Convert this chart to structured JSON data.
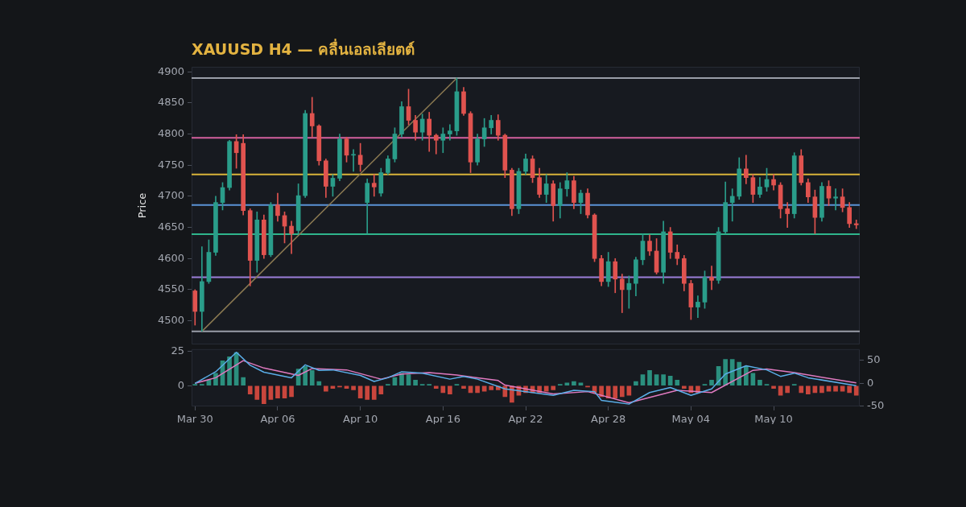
{
  "chart_data": [
    {
      "type": "candlestick",
      "title": "XAUUSD H4 — คลื่นเอลเลียตต์",
      "ylabel": "Price",
      "tick_labels": "y",
      "marker": "none",
      "categories": [
        null,
        null,
        null,
        null,
        null,
        null,
        null,
        null,
        null,
        null,
        null,
        null,
        null,
        null,
        null,
        null,
        null,
        null,
        null,
        null,
        null,
        null,
        null,
        null,
        null,
        null,
        null,
        null,
        null,
        null,
        null,
        null,
        null,
        null,
        null,
        null,
        null,
        null,
        null,
        null,
        null,
        null,
        null,
        null,
        null,
        null,
        null,
        null,
        null,
        null,
        null,
        null,
        null,
        null,
        null,
        null,
        null,
        null,
        null,
        null,
        null,
        null,
        null,
        null,
        null,
        null,
        null,
        null,
        null,
        null,
        null,
        null,
        null,
        null,
        null,
        null,
        null,
        null,
        null,
        null,
        null,
        null,
        null,
        null,
        null,
        null,
        null,
        null,
        null,
        null,
        null,
        null,
        null,
        null,
        null,
        null,
        null
      ],
      "ohlc": [
        [
          4548,
          4550,
          4493,
          4515
        ],
        [
          4515,
          4619,
          4483,
          4563
        ],
        [
          4563,
          4630,
          4560,
          4610
        ],
        [
          4610,
          4700,
          4605,
          4690
        ],
        [
          4690,
          4722,
          4678,
          4714
        ],
        [
          4714,
          4790,
          4710,
          4788
        ],
        [
          4788,
          4799,
          4745,
          4770
        ],
        [
          4785,
          4799,
          4670,
          4677
        ],
        [
          4677,
          4680,
          4556,
          4597
        ],
        [
          4597,
          4675,
          4578,
          4662
        ],
        [
          4662,
          4670,
          4600,
          4606
        ],
        [
          4606,
          4690,
          4603,
          4686
        ],
        [
          4686,
          4705,
          4660,
          4669
        ],
        [
          4669,
          4675,
          4625,
          4652
        ],
        [
          4652,
          4660,
          4608,
          4640
        ],
        [
          4645,
          4720,
          4640,
          4701
        ],
        [
          4701,
          4838,
          4698,
          4833
        ],
        [
          4833,
          4859,
          4795,
          4813
        ],
        [
          4813,
          4815,
          4750,
          4757
        ],
        [
          4757,
          4760,
          4698,
          4716
        ],
        [
          4716,
          4735,
          4700,
          4729
        ],
        [
          4729,
          4800,
          4725,
          4792
        ],
        [
          4792,
          4795,
          4755,
          4766
        ],
        [
          4766,
          4775,
          4740,
          4766
        ],
        [
          4766,
          4785,
          4740,
          4751
        ],
        [
          4690,
          4728,
          4640,
          4721
        ],
        [
          4721,
          4735,
          4700,
          4715
        ],
        [
          4705,
          4745,
          4700,
          4738
        ],
        [
          4738,
          4765,
          4735,
          4760
        ],
        [
          4760,
          4810,
          4755,
          4800
        ],
        [
          4800,
          4852,
          4795,
          4844
        ],
        [
          4844,
          4872,
          4815,
          4822
        ],
        [
          4822,
          4830,
          4790,
          4803
        ],
        [
          4803,
          4832,
          4790,
          4824
        ],
        [
          4824,
          4835,
          4772,
          4798
        ],
        [
          4798,
          4800,
          4768,
          4790
        ],
        [
          4790,
          4810,
          4770,
          4800
        ],
        [
          4800,
          4815,
          4790,
          4805
        ],
        [
          4805,
          4890,
          4798,
          4868
        ],
        [
          4868,
          4875,
          4830,
          4833
        ],
        [
          4833,
          4836,
          4738,
          4755
        ],
        [
          4755,
          4800,
          4750,
          4792
        ],
        [
          4792,
          4825,
          4780,
          4810
        ],
        [
          4810,
          4830,
          4800,
          4822
        ],
        [
          4822,
          4831,
          4790,
          4798
        ],
        [
          4798,
          4800,
          4730,
          4742
        ],
        [
          4742,
          4745,
          4669,
          4680
        ],
        [
          4680,
          4745,
          4672,
          4740
        ],
        [
          4740,
          4768,
          4735,
          4760
        ],
        [
          4760,
          4765,
          4722,
          4730
        ],
        [
          4730,
          4745,
          4698,
          4703
        ],
        [
          4703,
          4735,
          4690,
          4720
        ],
        [
          4720,
          4725,
          4660,
          4685
        ],
        [
          4685,
          4722,
          4665,
          4712
        ],
        [
          4712,
          4738,
          4700,
          4725
        ],
        [
          4725,
          4732,
          4680,
          4690
        ],
        [
          4690,
          4710,
          4672,
          4705
        ],
        [
          4705,
          4712,
          4665,
          4670
        ],
        [
          4670,
          4672,
          4595,
          4600
        ],
        [
          4600,
          4605,
          4556,
          4563
        ],
        [
          4563,
          4610,
          4555,
          4595
        ],
        [
          4595,
          4600,
          4545,
          4567
        ],
        [
          4567,
          4575,
          4513,
          4550
        ],
        [
          4550,
          4572,
          4520,
          4560
        ],
        [
          4560,
          4602,
          4540,
          4598
        ],
        [
          4598,
          4640,
          4590,
          4628
        ],
        [
          4628,
          4638,
          4605,
          4612
        ],
        [
          4612,
          4632,
          4575,
          4578
        ],
        [
          4578,
          4660,
          4560,
          4643
        ],
        [
          4643,
          4650,
          4600,
          4610
        ],
        [
          4610,
          4622,
          4590,
          4600
        ],
        [
          4600,
          4605,
          4548,
          4560
        ],
        [
          4560,
          4565,
          4502,
          4522
        ],
        [
          4522,
          4540,
          4505,
          4530
        ],
        [
          4530,
          4580,
          4520,
          4570
        ],
        [
          4570,
          4588,
          4550,
          4565
        ],
        [
          4565,
          4650,
          4560,
          4643
        ],
        [
          4643,
          4723,
          4640,
          4690
        ],
        [
          4690,
          4712,
          4660,
          4700
        ],
        [
          4700,
          4762,
          4695,
          4744
        ],
        [
          4744,
          4766,
          4720,
          4730
        ],
        [
          4730,
          4735,
          4690,
          4703
        ],
        [
          4703,
          4730,
          4698,
          4715
        ],
        [
          4715,
          4745,
          4708,
          4727
        ],
        [
          4727,
          4735,
          4710,
          4718
        ],
        [
          4718,
          4722,
          4665,
          4680
        ],
        [
          4680,
          4690,
          4650,
          4672
        ],
        [
          4672,
          4770,
          4665,
          4765
        ],
        [
          4765,
          4775,
          4718,
          4722
        ],
        [
          4722,
          4728,
          4690,
          4699
        ],
        [
          4699,
          4710,
          4640,
          4666
        ],
        [
          4666,
          4722,
          4660,
          4716
        ],
        [
          4716,
          4725,
          4685,
          4697
        ],
        [
          4697,
          4712,
          4678,
          4699
        ],
        [
          4699,
          4712,
          4675,
          4682
        ],
        [
          4682,
          4690,
          4650,
          4656
        ],
        [
          4656,
          4662,
          4648,
          4654
        ]
      ],
      "series": [
        {
          "type": "line",
          "color": "#8c7a52",
          "values": [
            null,
            4483,
            null,
            null,
            null,
            null,
            null,
            null,
            null,
            null,
            null,
            null,
            null,
            null,
            null,
            null,
            null,
            null,
            null,
            null,
            null,
            null,
            null,
            null,
            null,
            null,
            null,
            null,
            null,
            null,
            null,
            null,
            null,
            null,
            null,
            null,
            null,
            null,
            4890,
            null,
            null,
            null,
            null,
            null,
            null,
            null,
            null,
            null,
            null,
            null,
            null,
            null,
            null,
            null,
            null,
            null,
            null,
            null,
            null,
            null,
            null,
            null,
            null,
            null,
            null,
            null,
            null,
            null,
            null,
            null,
            null,
            null,
            null,
            null,
            null,
            null,
            null,
            null,
            null,
            null,
            null,
            null,
            null,
            null,
            null,
            null,
            null,
            null,
            null,
            null,
            null,
            null,
            null,
            null,
            null,
            null,
            null
          ]
        }
      ],
      "ylim": [
        4462,
        4908
      ],
      "yticks": [
        4500,
        4550,
        4600,
        4650,
        4700,
        4750,
        4800,
        4850,
        4900
      ],
      "ref_lines": [
        {
          "axis": "y",
          "value": 4890,
          "color": "#9a9ea8"
        },
        {
          "axis": "y",
          "value": 4794,
          "color": "#d4609e"
        },
        {
          "axis": "y",
          "value": 4735,
          "color": "#d9b43a"
        },
        {
          "axis": "y",
          "value": 4686,
          "color": "#5b93d6"
        },
        {
          "axis": "y",
          "value": 4639,
          "color": "#2fb58c"
        },
        {
          "axis": "y",
          "value": 4570,
          "color": "#9b7fd9"
        },
        {
          "axis": "y",
          "value": 4483,
          "color": "#9a9ea8"
        }
      ]
    },
    {
      "type": "bar",
      "marker": "none",
      "categories": [
        "Mar 30",
        null,
        null,
        null,
        null,
        null,
        null,
        null,
        null,
        null,
        null,
        null,
        "Apr 06",
        null,
        null,
        null,
        null,
        null,
        null,
        null,
        null,
        null,
        null,
        null,
        "Apr 10",
        null,
        null,
        null,
        null,
        null,
        null,
        null,
        null,
        null,
        null,
        null,
        "Apr 16",
        null,
        null,
        null,
        null,
        null,
        null,
        null,
        null,
        null,
        null,
        null,
        "Apr 22",
        null,
        null,
        null,
        null,
        null,
        null,
        null,
        null,
        null,
        null,
        null,
        "Apr 28",
        null,
        null,
        null,
        null,
        null,
        null,
        null,
        null,
        null,
        null,
        null,
        "May 04",
        null,
        null,
        null,
        null,
        null,
        null,
        null,
        null,
        null,
        null,
        null,
        "May 10",
        null,
        null,
        null,
        null,
        null,
        null,
        null,
        null,
        null,
        null,
        null,
        null
      ],
      "series": [
        {
          "type": "bar",
          "values": [
            1,
            1,
            4,
            9,
            18,
            21,
            24,
            6,
            -6,
            -10,
            -13,
            -10,
            -9,
            -9,
            -8,
            12,
            14,
            11,
            3,
            -4,
            -2,
            -1,
            -2,
            -3,
            -9,
            -10,
            -10,
            -6,
            1,
            6,
            9,
            8,
            4,
            1,
            1,
            -2,
            -5,
            -6,
            1,
            -2,
            -5,
            -5,
            -4,
            -3,
            -3,
            -8,
            -12,
            -7,
            -5,
            -5,
            -5,
            -4,
            -3,
            1,
            2,
            3,
            2,
            -1,
            -5,
            -8,
            -9,
            -9,
            -8,
            -7,
            3,
            8,
            11,
            8,
            8,
            7,
            4,
            -2,
            -5,
            -5,
            1,
            4,
            14,
            19,
            19,
            17,
            14,
            9,
            4,
            1,
            -2,
            -7,
            -5,
            1,
            -5,
            -6,
            -5,
            -5,
            -4,
            -4,
            -4,
            -5,
            -7
          ],
          "colors": [
            "#2b8f7e",
            "#2b8f7e",
            "#2b8f7e",
            "#2b8f7e",
            "#2b8f7e",
            "#2b8f7e",
            "#2b8f7e",
            "#2b8f7e",
            "#c9463d",
            "#c9463d",
            "#c9463d",
            "#c9463d",
            "#c9463d",
            "#c9463d",
            "#c9463d",
            "#2b8f7e",
            "#2b8f7e",
            "#2b8f7e",
            "#2b8f7e",
            "#c9463d",
            "#c9463d",
            "#c9463d",
            "#c9463d",
            "#c9463d",
            "#c9463d",
            "#c9463d",
            "#c9463d",
            "#c9463d",
            "#2b8f7e",
            "#2b8f7e",
            "#2b8f7e",
            "#2b8f7e",
            "#2b8f7e",
            "#2b8f7e",
            "#2b8f7e",
            "#c9463d",
            "#c9463d",
            "#c9463d",
            "#2b8f7e",
            "#c9463d",
            "#c9463d",
            "#c9463d",
            "#c9463d",
            "#c9463d",
            "#c9463d",
            "#c9463d",
            "#c9463d",
            "#c9463d",
            "#c9463d",
            "#c9463d",
            "#c9463d",
            "#c9463d",
            "#c9463d",
            "#2b8f7e",
            "#2b8f7e",
            "#2b8f7e",
            "#2b8f7e",
            "#c9463d",
            "#c9463d",
            "#c9463d",
            "#c9463d",
            "#c9463d",
            "#c9463d",
            "#c9463d",
            "#2b8f7e",
            "#2b8f7e",
            "#2b8f7e",
            "#2b8f7e",
            "#2b8f7e",
            "#2b8f7e",
            "#2b8f7e",
            "#c9463d",
            "#c9463d",
            "#c9463d",
            "#2b8f7e",
            "#2b8f7e",
            "#2b8f7e",
            "#2b8f7e",
            "#2b8f7e",
            "#2b8f7e",
            "#2b8f7e",
            "#2b8f7e",
            "#2b8f7e",
            "#2b8f7e",
            "#c9463d",
            "#c9463d",
            "#c9463d",
            "#2b8f7e",
            "#c9463d",
            "#c9463d",
            "#c9463d",
            "#c9463d",
            "#c9463d",
            "#c9463d",
            "#c9463d",
            "#c9463d",
            "#c9463d"
          ]
        },
        {
          "type": "line",
          "axis": "y2",
          "color": "#5aaee8",
          "values": [
            0,
            null,
            null,
            25,
            null,
            null,
            67,
            null,
            39,
            null,
            24,
            null,
            null,
            null,
            12,
            null,
            40,
            null,
            28,
            null,
            29,
            null,
            null,
            null,
            17,
            null,
            4,
            null,
            12,
            null,
            25,
            null,
            null,
            22,
            null,
            null,
            null,
            9,
            null,
            15,
            null,
            9,
            null,
            null,
            null,
            -12,
            null,
            null,
            null,
            null,
            null,
            null,
            -26,
            null,
            null,
            -15,
            null,
            null,
            -18,
            -37,
            null,
            null,
            null,
            -45,
            null,
            null,
            -20,
            null,
            null,
            -9,
            null,
            null,
            -26,
            null,
            null,
            -12,
            null,
            20,
            null,
            null,
            38,
            null,
            null,
            29,
            null,
            15,
            null,
            22,
            null,
            12,
            null,
            null,
            null,
            null,
            null,
            null,
            -5
          ]
        },
        {
          "type": "line",
          "axis": "y2",
          "color": "#e07ac0",
          "values": [
            0,
            null,
            null,
            12,
            null,
            null,
            null,
            49,
            null,
            null,
            33,
            null,
            null,
            null,
            null,
            17,
            null,
            32,
            null,
            null,
            null,
            null,
            29,
            null,
            null,
            null,
            null,
            9,
            null,
            null,
            20,
            null,
            null,
            null,
            23,
            null,
            null,
            null,
            18,
            null,
            null,
            12,
            null,
            null,
            6,
            -4,
            null,
            null,
            null,
            null,
            null,
            null,
            -23,
            null,
            null,
            null,
            null,
            -18,
            null,
            null,
            null,
            null,
            null,
            -42,
            null,
            null,
            null,
            null,
            null,
            null,
            -15,
            null,
            null,
            null,
            null,
            -20,
            null,
            null,
            null,
            null,
            null,
            28,
            null,
            31,
            null,
            null,
            null,
            23,
            null,
            null,
            null,
            null,
            null,
            null,
            null,
            null,
            1
          ]
        }
      ],
      "ylim": [
        -15,
        26.5
      ],
      "yticks": [
        0,
        25
      ],
      "y2lim": [
        -50,
        74
      ],
      "y2ticks": [
        -50,
        0,
        50
      ]
    }
  ]
}
